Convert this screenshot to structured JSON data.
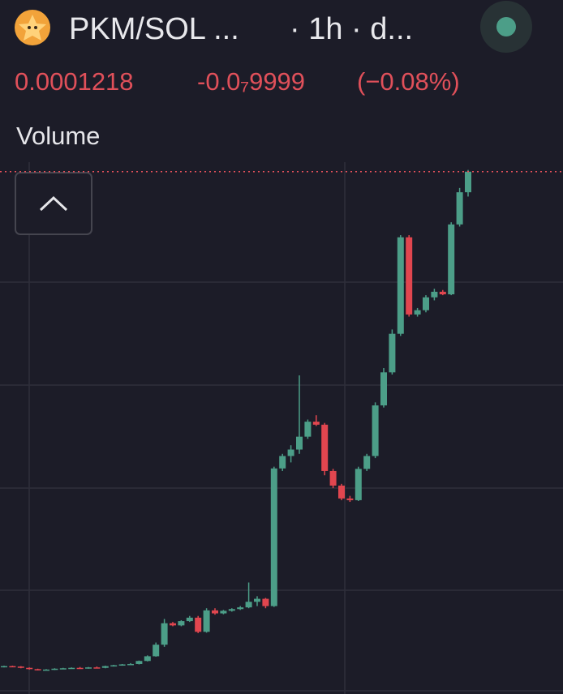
{
  "header": {
    "pair": "PKM/SOL ...",
    "interval": "· 1h · d...",
    "price": "0.0001218",
    "change": "-0.0₇9999",
    "change_pct": "(−0.08%)"
  },
  "volume_label": "Volume",
  "chart_data": {
    "type": "candlestick",
    "ylim": [
      0,
      0.0001244
    ],
    "up_color": "#4c9e88",
    "down_color": "#e1464f",
    "candles": [
      [
        6.4e-06,
        6.6e-06,
        6.2e-06,
        6.5e-06
      ],
      [
        6.5e-06,
        6.6e-06,
        6.3e-06,
        6.4e-06
      ],
      [
        6.4e-06,
        6.5e-06,
        6e-06,
        6.1e-06
      ],
      [
        6.1e-06,
        6.2e-06,
        5.7e-06,
        5.8e-06
      ],
      [
        5.8e-06,
        5.9e-06,
        5.5e-06,
        5.6e-06
      ],
      [
        5.6e-06,
        5.8e-06,
        5.5e-06,
        5.7e-06
      ],
      [
        5.7e-06,
        6e-06,
        5.6e-06,
        5.9e-06
      ],
      [
        5.9e-06,
        6.1e-06,
        5.8e-06,
        6e-06
      ],
      [
        6e-06,
        6.2e-06,
        5.9e-06,
        6.1e-06
      ],
      [
        6.1e-06,
        6.3e-06,
        6e-06,
        6e-06
      ],
      [
        6e-06,
        6.3e-06,
        5.9e-06,
        6.2e-06
      ],
      [
        6.2e-06,
        6.4e-06,
        6.1e-06,
        6.1e-06
      ],
      [
        6.1e-06,
        6.6e-06,
        6e-06,
        6.5e-06
      ],
      [
        6.5e-06,
        6.8e-06,
        6.4e-06,
        6.7e-06
      ],
      [
        6.7e-06,
        7e-06,
        6.6e-06,
        6.9e-06
      ],
      [
        6.9e-06,
        7.2e-06,
        6.8e-06,
        7e-06
      ],
      [
        7e-06,
        7.8e-06,
        6.9e-06,
        7.7e-06
      ],
      [
        7.7e-06,
        9e-06,
        7.6e-06,
        8.8e-06
      ],
      [
        8.8e-06,
        1.2e-05,
        8.7e-06,
        1.15e-05
      ],
      [
        1.15e-05,
        1.75e-05,
        1.1e-05,
        1.65e-05
      ],
      [
        1.65e-05,
        1.68e-05,
        1.58e-05,
        1.6e-05
      ],
      [
        1.6e-05,
        1.72e-05,
        1.58e-05,
        1.7e-05
      ],
      [
        1.7e-05,
        1.82e-05,
        1.68e-05,
        1.78e-05
      ],
      [
        1.78e-05,
        1.82e-05,
        1.42e-05,
        1.45e-05
      ],
      [
        1.45e-05,
        2e-05,
        1.43e-05,
        1.95e-05
      ],
      [
        1.95e-05,
        2e-05,
        1.85e-05,
        1.88e-05
      ],
      [
        1.88e-05,
        1.96e-05,
        1.86e-05,
        1.94e-05
      ],
      [
        1.94e-05,
        2e-05,
        1.92e-05,
        1.98e-05
      ],
      [
        1.98e-05,
        2.05e-05,
        1.96e-05,
        2.02e-05
      ],
      [
        2.02e-05,
        2.6e-05,
        2e-05,
        2.15e-05
      ],
      [
        2.15e-05,
        2.28e-05,
        2.05e-05,
        2.22e-05
      ],
      [
        2.22e-05,
        2.24e-05,
        2e-05,
        2.05e-05
      ],
      [
        2.05e-05,
        5.3e-05,
        2.03e-05,
        5.26e-05
      ],
      [
        5.26e-05,
        5.6e-05,
        5.2e-05,
        5.55e-05
      ],
      [
        5.55e-05,
        5.8e-05,
        5.4e-05,
        5.7e-05
      ],
      [
        5.7e-05,
        7.43e-05,
        5.6e-05,
        6e-05
      ],
      [
        6e-05,
        6.4e-05,
        5.95e-05,
        6.35e-05
      ],
      [
        6.35e-05,
        6.5e-05,
        6.25e-05,
        6.28e-05
      ],
      [
        6.28e-05,
        6.32e-05,
        5.1e-05,
        5.2e-05
      ],
      [
        5.2e-05,
        5.25e-05,
        4.8e-05,
        4.86e-05
      ],
      [
        4.86e-05,
        4.9e-05,
        4.52e-05,
        4.56e-05
      ],
      [
        4.56e-05,
        4.62e-05,
        4.48e-05,
        4.52e-05
      ],
      [
        4.52e-05,
        5.3e-05,
        4.5e-05,
        5.25e-05
      ],
      [
        5.25e-05,
        5.6e-05,
        5.2e-05,
        5.55e-05
      ],
      [
        5.55e-05,
        6.8e-05,
        5.5e-05,
        6.73e-05
      ],
      [
        6.73e-05,
        7.6e-05,
        6.68e-05,
        7.5e-05
      ],
      [
        7.5e-05,
        8.5e-05,
        7.45e-05,
        8.4e-05
      ],
      [
        8.4e-05,
        0.000107,
        8.35e-05,
        0.0001065
      ],
      [
        0.0001065,
        0.000107,
        8.8e-05,
        8.85e-05
      ],
      [
        8.85e-05,
        9e-05,
        8.8e-05,
        8.95e-05
      ],
      [
        8.95e-05,
        9.3e-05,
        8.9e-05,
        9.25e-05
      ],
      [
        9.25e-05,
        9.45e-05,
        9.18e-05,
        9.38e-05
      ],
      [
        9.38e-05,
        9.42e-05,
        9.3e-05,
        9.32e-05
      ],
      [
        9.32e-05,
        0.00011,
        9.3e-05,
        0.0001095
      ],
      [
        0.0001095,
        0.000118,
        0.000109,
        0.000117
      ],
      [
        0.000117,
        0.0001222,
        0.000116,
        0.0001218
      ]
    ]
  }
}
